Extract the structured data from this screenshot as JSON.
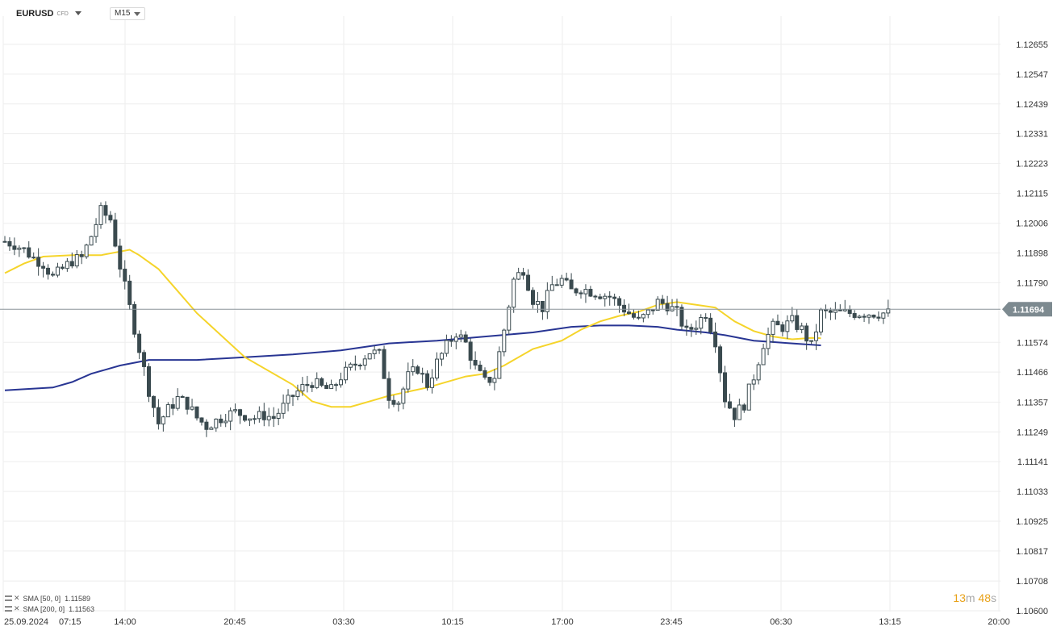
{
  "header": {
    "symbol": "EURUSD",
    "symbol_type": "CFD",
    "timeframe": "M15"
  },
  "legend": [
    {
      "label": "SMA [50, 0]",
      "value": "1.11589",
      "color": "#f5d42a"
    },
    {
      "label": "SMA [200, 0]",
      "value": "1.11563",
      "color": "#283593"
    }
  ],
  "timer": {
    "minutes": "13",
    "m": "m",
    "seconds": "48",
    "s": "s"
  },
  "current_price": "1.11694",
  "colors": {
    "up": "#ffffff",
    "down": "#3a4a4f",
    "grid": "#eeeeee",
    "sma50": "#f5d42a",
    "sma200": "#283593",
    "badge": "#7d8a90"
  },
  "chart_data": {
    "type": "candlestick",
    "y_ticks": [
      "1.12655",
      "1.12547",
      "1.12439",
      "1.12331",
      "1.12223",
      "1.12115",
      "1.12006",
      "1.11898",
      "1.11790",
      "1.11574",
      "1.11466",
      "1.11357",
      "1.11249",
      "1.11141",
      "1.11033",
      "1.10925",
      "1.10817",
      "1.10708",
      "1.10600"
    ],
    "x_ticks": [
      "25.09.2024",
      "07:15",
      "14:00",
      "20:45",
      "03:30",
      "10:15",
      "17:00",
      "23:45",
      "06:30",
      "13:15",
      "20:00"
    ],
    "ylim": [
      1.106,
      1.1269
    ],
    "current_price": 1.11694,
    "close_path": [
      [
        0,
        1.1194
      ],
      [
        2,
        1.1193
      ],
      [
        4,
        1.1191
      ],
      [
        6,
        1.1188
      ],
      [
        8,
        1.1186
      ],
      [
        10,
        1.1181
      ],
      [
        12,
        1.1184
      ],
      [
        14,
        1.1187
      ],
      [
        16,
        1.1188
      ],
      [
        18,
        1.1196
      ],
      [
        20,
        1.1205
      ],
      [
        22,
        1.1202
      ],
      [
        24,
        1.1185
      ],
      [
        26,
        1.117
      ],
      [
        28,
        1.1155
      ],
      [
        30,
        1.114
      ],
      [
        32,
        1.1128
      ],
      [
        34,
        1.1133
      ],
      [
        36,
        1.1137
      ],
      [
        38,
        1.1135
      ],
      [
        40,
        1.113
      ],
      [
        42,
        1.1127
      ],
      [
        44,
        1.1129
      ],
      [
        46,
        1.1131
      ],
      [
        48,
        1.1132
      ],
      [
        50,
        1.1131
      ],
      [
        52,
        1.113
      ],
      [
        54,
        1.1131
      ],
      [
        56,
        1.113
      ],
      [
        58,
        1.1134
      ],
      [
        60,
        1.1138
      ],
      [
        62,
        1.1141
      ],
      [
        64,
        1.1143
      ],
      [
        66,
        1.1141
      ],
      [
        68,
        1.114
      ],
      [
        70,
        1.1145
      ],
      [
        72,
        1.1148
      ],
      [
        74,
        1.1151
      ],
      [
        76,
        1.1154
      ],
      [
        78,
        1.1153
      ],
      [
        80,
        1.1138
      ],
      [
        82,
        1.1136
      ],
      [
        84,
        1.1145
      ],
      [
        86,
        1.1148
      ],
      [
        88,
        1.1142
      ],
      [
        90,
        1.115
      ],
      [
        92,
        1.1156
      ],
      [
        94,
        1.1161
      ],
      [
        96,
        1.1157
      ],
      [
        98,
        1.1148
      ],
      [
        100,
        1.1143
      ],
      [
        102,
        1.1145
      ],
      [
        104,
        1.1162
      ],
      [
        106,
        1.118
      ],
      [
        108,
        1.1184
      ],
      [
        110,
        1.1173
      ],
      [
        112,
        1.117
      ],
      [
        114,
        1.1178
      ],
      [
        116,
        1.118
      ],
      [
        118,
        1.1176
      ],
      [
        120,
        1.1177
      ],
      [
        122,
        1.1176
      ],
      [
        124,
        1.1175
      ],
      [
        126,
        1.1174
      ],
      [
        128,
        1.1171
      ],
      [
        130,
        1.1168
      ],
      [
        132,
        1.1165
      ],
      [
        134,
        1.1168
      ],
      [
        136,
        1.1172
      ],
      [
        138,
        1.1171
      ],
      [
        140,
        1.1168
      ],
      [
        142,
        1.1161
      ],
      [
        144,
        1.1164
      ],
      [
        146,
        1.1168
      ],
      [
        148,
        1.1158
      ],
      [
        150,
        1.1137
      ],
      [
        152,
        1.1131
      ],
      [
        154,
        1.1135
      ],
      [
        156,
        1.1145
      ],
      [
        158,
        1.1157
      ],
      [
        160,
        1.1163
      ],
      [
        162,
        1.1163
      ],
      [
        164,
        1.1165
      ],
      [
        166,
        1.1162
      ],
      [
        168,
        1.1156
      ],
      [
        170,
        1.1168
      ]
    ],
    "series": [
      {
        "name": "SMA [50, 0]",
        "points": [
          [
            0,
            1.11825
          ],
          [
            4,
            1.1186
          ],
          [
            8,
            1.11885
          ],
          [
            14,
            1.1189
          ],
          [
            20,
            1.1189
          ],
          [
            26,
            1.1191
          ],
          [
            28,
            1.1189
          ],
          [
            32,
            1.1184
          ],
          [
            36,
            1.1176
          ],
          [
            40,
            1.1168
          ],
          [
            50,
            1.1152
          ],
          [
            60,
            1.1142
          ],
          [
            64,
            1.1136
          ],
          [
            68,
            1.1134
          ],
          [
            72,
            1.1134
          ],
          [
            76,
            1.1136
          ],
          [
            80,
            1.1138
          ],
          [
            88,
            1.1141
          ],
          [
            96,
            1.1145
          ],
          [
            100,
            1.1146
          ],
          [
            104,
            1.1149
          ],
          [
            110,
            1.1155
          ],
          [
            116,
            1.1158
          ],
          [
            120,
            1.1162
          ],
          [
            124,
            1.1165
          ],
          [
            128,
            1.1167
          ],
          [
            132,
            1.11685
          ],
          [
            136,
            1.1171
          ],
          [
            140,
            1.1172
          ],
          [
            144,
            1.1171
          ],
          [
            148,
            1.117
          ],
          [
            152,
            1.1165
          ],
          [
            156,
            1.11615
          ],
          [
            160,
            1.11595
          ],
          [
            164,
            1.11585
          ],
          [
            168,
            1.1159
          ],
          [
            170,
            1.11589
          ]
        ]
      },
      {
        "name": "SMA [200, 0]",
        "points": [
          [
            0,
            1.114
          ],
          [
            10,
            1.1141
          ],
          [
            14,
            1.1143
          ],
          [
            18,
            1.1146
          ],
          [
            24,
            1.1149
          ],
          [
            30,
            1.1151
          ],
          [
            40,
            1.1151
          ],
          [
            50,
            1.1152
          ],
          [
            60,
            1.1153
          ],
          [
            70,
            1.11545
          ],
          [
            80,
            1.1157
          ],
          [
            90,
            1.1158
          ],
          [
            100,
            1.11595
          ],
          [
            110,
            1.1161
          ],
          [
            118,
            1.1163
          ],
          [
            124,
            1.11635
          ],
          [
            130,
            1.11635
          ],
          [
            136,
            1.1163
          ],
          [
            140,
            1.1162
          ],
          [
            146,
            1.1161
          ],
          [
            150,
            1.116
          ],
          [
            156,
            1.1158
          ],
          [
            160,
            1.11575
          ],
          [
            164,
            1.1157
          ],
          [
            170,
            1.11563
          ]
        ]
      }
    ]
  }
}
